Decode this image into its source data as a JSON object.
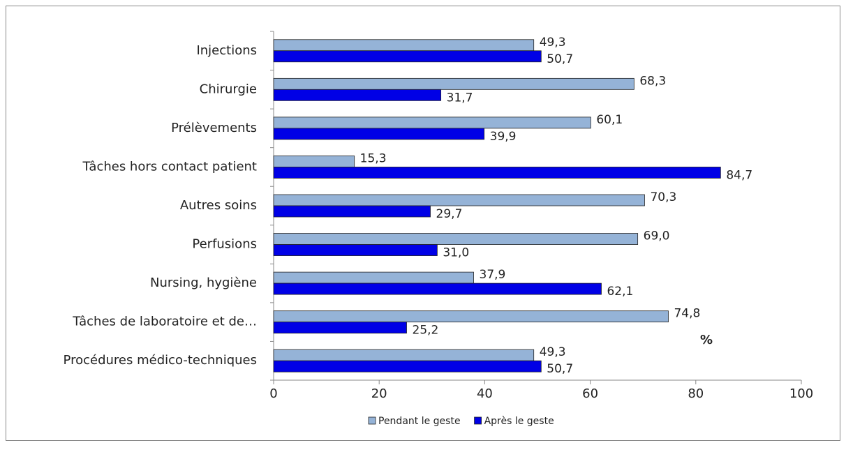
{
  "chart_data": {
    "type": "hbar",
    "categories": [
      "Injections",
      "Chirurgie",
      "Prélèvements",
      "Tâches hors contact patient",
      "Autres soins",
      "Perfusions",
      "Nursing, hygiène",
      "Tâches de laboratoire et de…",
      "Procédures médico-techniques"
    ],
    "series": [
      {
        "name": "Pendant le geste",
        "color": "#95b3d7",
        "values": [
          49.3,
          68.3,
          60.1,
          15.3,
          70.3,
          69.0,
          37.9,
          74.8,
          49.3
        ],
        "value_labels": [
          "49,3",
          "68,3",
          "60,1",
          "15,3",
          "70,3",
          "69,0",
          "37,9",
          "74,8",
          "49,3"
        ]
      },
      {
        "name": "Après le geste",
        "color": "#0000e6",
        "values": [
          50.7,
          31.7,
          39.9,
          84.7,
          29.7,
          31.0,
          62.1,
          25.2,
          50.7
        ],
        "value_labels": [
          "50,7",
          "31,7",
          "39,9",
          "84,7",
          "29,7",
          "31,0",
          "62,1",
          "25,2",
          "50,7"
        ]
      }
    ],
    "xlim": [
      0,
      100
    ],
    "xticks": [
      0,
      20,
      40,
      60,
      80,
      100
    ],
    "annotation": "%",
    "legend": "bottom"
  }
}
